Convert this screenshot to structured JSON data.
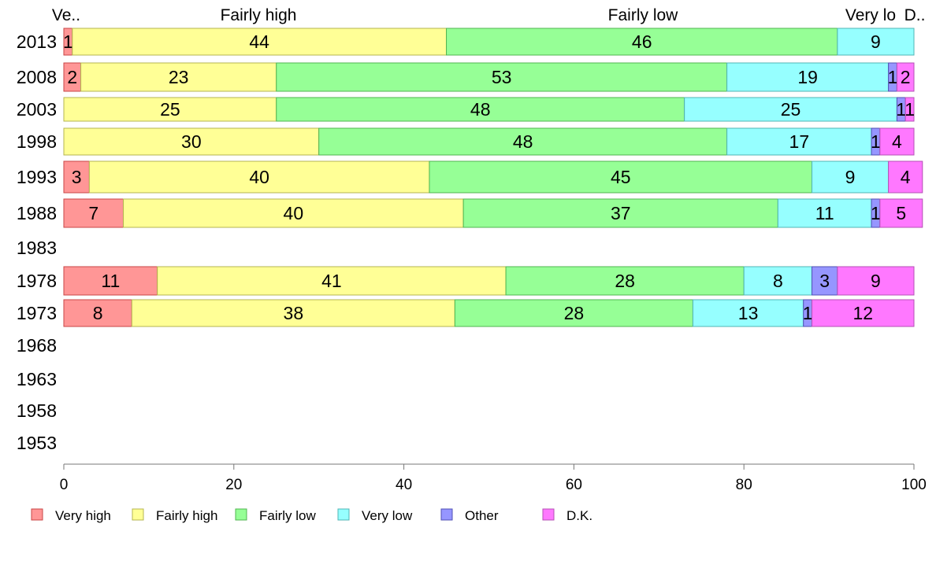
{
  "chart_data": {
    "type": "bar",
    "orientation": "horizontal",
    "stacked": true,
    "categories": [
      "2013",
      "2008",
      "2003",
      "1998",
      "1993",
      "1988",
      "1983",
      "1978",
      "1973",
      "1968",
      "1963",
      "1958",
      "1953"
    ],
    "top_labels": [
      "Ve..",
      "Fairly high",
      "Fairly low",
      "Very lo",
      "D.."
    ],
    "series": [
      {
        "name": "Very high",
        "color": "#ff9696",
        "border": "#c84646",
        "values": [
          1,
          2,
          null,
          null,
          3,
          7,
          null,
          11,
          8,
          null,
          null,
          null,
          null
        ]
      },
      {
        "name": "Fairly high",
        "color": "#ffff96",
        "border": "#b4b450",
        "values": [
          44,
          23,
          25,
          30,
          40,
          40,
          null,
          41,
          38,
          null,
          null,
          null,
          null
        ]
      },
      {
        "name": "Fairly low",
        "color": "#96ff96",
        "border": "#50b450",
        "values": [
          46,
          53,
          48,
          48,
          45,
          37,
          null,
          28,
          28,
          null,
          null,
          null,
          null
        ]
      },
      {
        "name": "Very low",
        "color": "#96ffff",
        "border": "#50b4b4",
        "values": [
          9,
          19,
          25,
          17,
          9,
          11,
          null,
          8,
          13,
          null,
          null,
          null,
          null
        ]
      },
      {
        "name": "Other",
        "color": "#9696ff",
        "border": "#5050b4",
        "values": [
          null,
          1,
          1,
          1,
          null,
          1,
          null,
          3,
          1,
          null,
          null,
          null,
          null
        ]
      },
      {
        "name": "D.K.",
        "color": "#ff78ff",
        "border": "#b450b4",
        "values": [
          null,
          2,
          1,
          4,
          4,
          5,
          null,
          9,
          12,
          null,
          null,
          null,
          null
        ]
      }
    ],
    "xlim": [
      0,
      100
    ],
    "xticks": [
      "0",
      "20",
      "40",
      "60",
      "80",
      "100"
    ],
    "grid": false,
    "legend_position": "bottom"
  }
}
